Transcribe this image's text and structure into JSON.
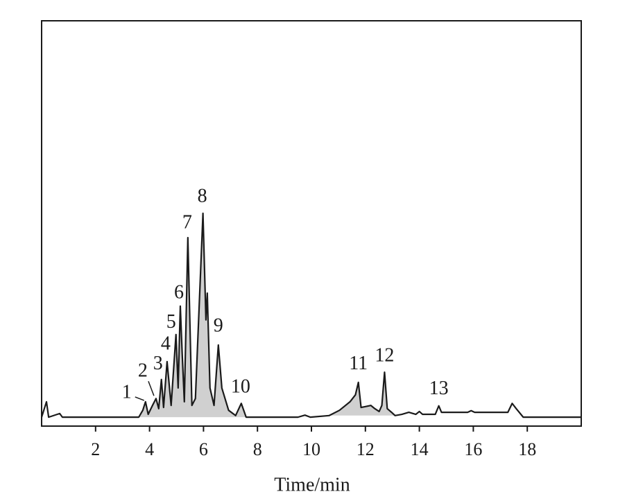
{
  "chart_data": {
    "type": "line",
    "x_label": "Time/min",
    "xlim": [
      0,
      20
    ],
    "ylim": [
      0,
      100
    ],
    "xticks": [
      2,
      4,
      6,
      8,
      10,
      12,
      14,
      16,
      18
    ],
    "grid": false,
    "series": [
      {
        "color": "#1a1a1a",
        "fill_color": "#d0d0d0",
        "fill_ranges": [
          [
            3.6,
            7.58
          ],
          [
            10.66,
            13.1
          ]
        ],
        "x": [
          0,
          0.18,
          0.26,
          0.67,
          0.77,
          3.6,
          3.75,
          3.85,
          3.95,
          4.11,
          4.24,
          4.34,
          4.44,
          4.52,
          4.65,
          4.8,
          4.98,
          5.06,
          5.14,
          5.21,
          5.29,
          5.42,
          5.57,
          5.7,
          5.98,
          6.09,
          6.14,
          6.24,
          6.39,
          6.55,
          6.68,
          6.93,
          7.19,
          7.4,
          7.58,
          9.5,
          9.76,
          9.96,
          10.66,
          11.04,
          11.43,
          11.63,
          11.74,
          11.84,
          11.99,
          12.2,
          12.35,
          12.51,
          12.61,
          12.71,
          12.81,
          12.97,
          13.1,
          13.35,
          13.61,
          13.87,
          14.0,
          14.12,
          14.59,
          14.72,
          14.82,
          15.79,
          15.92,
          16.05,
          17.28,
          17.44,
          17.59,
          17.85,
          20
        ],
        "values": [
          2.2,
          6.0,
          2.2,
          3.1,
          2.2,
          2.2,
          3.9,
          6.0,
          2.9,
          5.1,
          6.8,
          4.3,
          11.5,
          4.6,
          15.9,
          5.1,
          22.6,
          9.4,
          29.6,
          17.9,
          6.0,
          46.5,
          5.1,
          6.8,
          52.5,
          26.2,
          32.8,
          9.4,
          5.1,
          20.0,
          9.4,
          3.9,
          2.6,
          5.6,
          2.2,
          2.2,
          2.7,
          2.2,
          2.6,
          3.9,
          6.0,
          7.7,
          10.8,
          4.6,
          4.8,
          5.1,
          4.3,
          3.6,
          5.1,
          13.3,
          4.3,
          3.4,
          2.6,
          2.9,
          3.4,
          2.9,
          3.6,
          2.9,
          2.9,
          5.0,
          3.4,
          3.4,
          3.8,
          3.4,
          3.4,
          5.6,
          4.3,
          2.2,
          2.2
        ]
      }
    ],
    "annotations": [
      {
        "text": "1",
        "x": 3.85
      },
      {
        "text": "2",
        "x": 4.24
      },
      {
        "text": "3",
        "x": 4.44
      },
      {
        "text": "4",
        "x": 4.65
      },
      {
        "text": "5",
        "x": 4.98
      },
      {
        "text": "6",
        "x": 5.14
      },
      {
        "text": "7",
        "x": 5.42
      },
      {
        "text": "8",
        "x": 5.98
      },
      {
        "text": "9",
        "x": 6.55
      },
      {
        "text": "10",
        "x": 7.4
      },
      {
        "text": "11",
        "x": 11.74
      },
      {
        "text": "12",
        "x": 12.71
      },
      {
        "text": "13",
        "x": 14.72
      }
    ]
  }
}
